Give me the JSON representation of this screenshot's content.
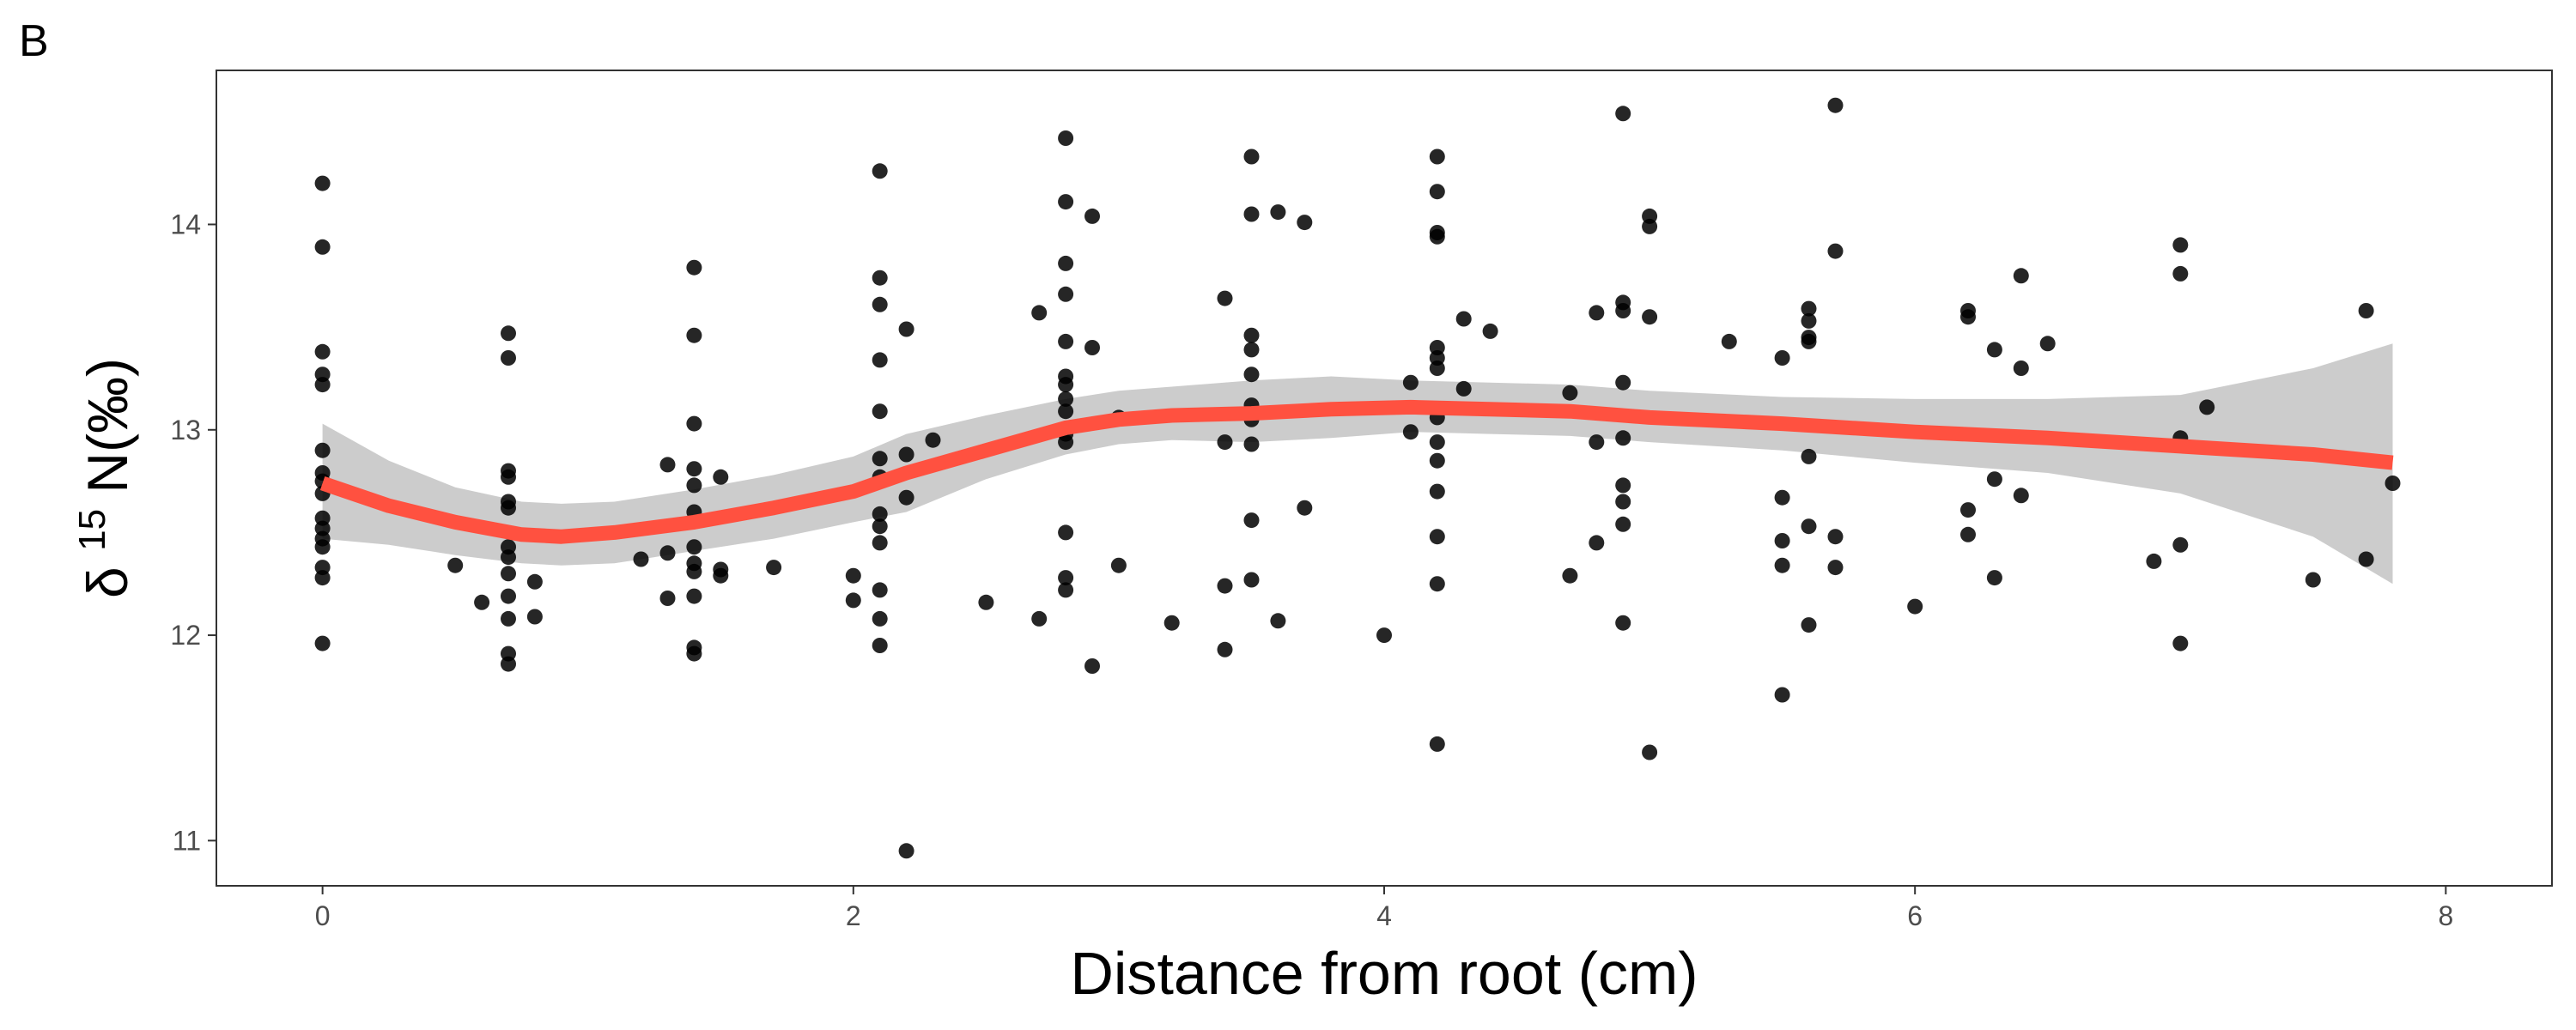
{
  "panel_label": "B",
  "chart_data": {
    "type": "scatter",
    "xlabel": "Distance from root (cm)",
    "ylabel": {
      "prefix": "δ",
      "superscript": "15",
      "suffix": "N(‰)"
    },
    "xlim": [
      -0.4,
      8.4
    ],
    "ylim": [
      10.78,
      14.75
    ],
    "x_ticks": [
      0,
      2,
      4,
      6,
      8
    ],
    "y_ticks": [
      11,
      12,
      13,
      14
    ],
    "grid": false,
    "legend": "none",
    "colors": {
      "points": "#000000",
      "smooth_line": "#ff5140",
      "confidence_band": "#cccccc",
      "panel_border": "#333333",
      "tick_text": "#4d4d4d"
    },
    "points": [
      [
        0,
        14.2
      ],
      [
        0,
        13.89
      ],
      [
        0,
        13.38
      ],
      [
        0,
        13.27
      ],
      [
        0,
        13.22
      ],
      [
        0,
        12.9
      ],
      [
        0,
        12.79
      ],
      [
        0,
        12.75
      ],
      [
        0,
        12.69
      ],
      [
        0,
        12.57
      ],
      [
        0,
        12.52
      ],
      [
        0,
        12.47
      ],
      [
        0,
        12.43
      ],
      [
        0,
        12.33
      ],
      [
        0,
        12.28
      ],
      [
        0,
        11.96
      ],
      [
        0.5,
        12.34
      ],
      [
        0.6,
        12.16
      ],
      [
        0.7,
        13.47
      ],
      [
        0.7,
        13.35
      ],
      [
        0.7,
        12.8
      ],
      [
        0.7,
        12.77
      ],
      [
        0.7,
        12.65
      ],
      [
        0.7,
        12.62
      ],
      [
        0.7,
        12.43
      ],
      [
        0.7,
        12.38
      ],
      [
        0.7,
        12.3
      ],
      [
        0.7,
        12.19
      ],
      [
        0.7,
        12.08
      ],
      [
        0.7,
        11.91
      ],
      [
        0.7,
        11.86
      ],
      [
        0.8,
        12.26
      ],
      [
        0.8,
        12.09
      ],
      [
        1.2,
        12.37
      ],
      [
        1.3,
        12.83
      ],
      [
        1.3,
        12.4
      ],
      [
        1.3,
        12.18
      ],
      [
        1.4,
        13.79
      ],
      [
        1.4,
        13.46
      ],
      [
        1.4,
        13.03
      ],
      [
        1.4,
        12.81
      ],
      [
        1.4,
        12.73
      ],
      [
        1.4,
        12.6
      ],
      [
        1.4,
        12.43
      ],
      [
        1.4,
        12.35
      ],
      [
        1.4,
        12.31
      ],
      [
        1.4,
        12.19
      ],
      [
        1.4,
        11.94
      ],
      [
        1.4,
        11.91
      ],
      [
        1.5,
        12.77
      ],
      [
        1.5,
        12.32
      ],
      [
        1.5,
        12.29
      ],
      [
        1.7,
        12.33
      ],
      [
        2.0,
        12.29
      ],
      [
        2.0,
        12.17
      ],
      [
        2.1,
        14.26
      ],
      [
        2.1,
        13.74
      ],
      [
        2.1,
        13.61
      ],
      [
        2.1,
        13.34
      ],
      [
        2.1,
        13.09
      ],
      [
        2.1,
        12.86
      ],
      [
        2.1,
        12.77
      ],
      [
        2.1,
        12.59
      ],
      [
        2.1,
        12.53
      ],
      [
        2.1,
        12.45
      ],
      [
        2.1,
        12.22
      ],
      [
        2.1,
        12.08
      ],
      [
        2.1,
        11.95
      ],
      [
        2.2,
        13.49
      ],
      [
        2.2,
        12.88
      ],
      [
        2.2,
        12.67
      ],
      [
        2.2,
        10.95
      ],
      [
        2.3,
        12.95
      ],
      [
        2.5,
        12.16
      ],
      [
        2.7,
        13.57
      ],
      [
        2.7,
        12.08
      ],
      [
        2.8,
        14.42
      ],
      [
        2.8,
        14.11
      ],
      [
        2.8,
        13.81
      ],
      [
        2.8,
        13.66
      ],
      [
        2.8,
        13.43
      ],
      [
        2.8,
        13.26
      ],
      [
        2.8,
        13.22
      ],
      [
        2.8,
        13.15
      ],
      [
        2.8,
        13.09
      ],
      [
        2.8,
        12.98
      ],
      [
        2.8,
        12.94
      ],
      [
        2.8,
        12.5
      ],
      [
        2.8,
        12.28
      ],
      [
        2.8,
        12.22
      ],
      [
        2.9,
        14.04
      ],
      [
        2.9,
        13.4
      ],
      [
        2.9,
        11.85
      ],
      [
        3.0,
        12.34
      ],
      [
        3.0,
        13.06
      ],
      [
        3.2,
        12.06
      ],
      [
        3.4,
        13.64
      ],
      [
        3.4,
        12.94
      ],
      [
        3.4,
        12.24
      ],
      [
        3.4,
        11.93
      ],
      [
        3.5,
        14.33
      ],
      [
        3.5,
        14.05
      ],
      [
        3.5,
        13.46
      ],
      [
        3.5,
        13.39
      ],
      [
        3.5,
        13.27
      ],
      [
        3.5,
        13.12
      ],
      [
        3.5,
        13.05
      ],
      [
        3.5,
        12.93
      ],
      [
        3.5,
        12.56
      ],
      [
        3.5,
        12.27
      ],
      [
        3.6,
        14.06
      ],
      [
        3.6,
        12.07
      ],
      [
        3.7,
        14.01
      ],
      [
        3.7,
        12.62
      ],
      [
        4.0,
        12.0
      ],
      [
        4.1,
        13.23
      ],
      [
        4.1,
        12.99
      ],
      [
        4.2,
        14.33
      ],
      [
        4.2,
        14.16
      ],
      [
        4.2,
        13.96
      ],
      [
        4.2,
        13.94
      ],
      [
        4.2,
        13.4
      ],
      [
        4.2,
        13.35
      ],
      [
        4.2,
        13.3
      ],
      [
        4.2,
        13.06
      ],
      [
        4.2,
        12.94
      ],
      [
        4.2,
        12.85
      ],
      [
        4.2,
        12.7
      ],
      [
        4.2,
        12.48
      ],
      [
        4.2,
        12.25
      ],
      [
        4.2,
        11.47
      ],
      [
        4.3,
        13.54
      ],
      [
        4.3,
        13.2
      ],
      [
        4.4,
        13.48
      ],
      [
        4.7,
        13.18
      ],
      [
        4.7,
        12.29
      ],
      [
        4.8,
        13.57
      ],
      [
        4.8,
        12.94
      ],
      [
        4.8,
        12.45
      ],
      [
        4.9,
        14.54
      ],
      [
        4.9,
        13.62
      ],
      [
        4.9,
        13.58
      ],
      [
        4.9,
        13.23
      ],
      [
        4.9,
        12.96
      ],
      [
        4.9,
        12.73
      ],
      [
        4.9,
        12.65
      ],
      [
        4.9,
        12.54
      ],
      [
        4.9,
        12.06
      ],
      [
        5.0,
        14.04
      ],
      [
        5.0,
        13.99
      ],
      [
        5.0,
        13.55
      ],
      [
        5.0,
        11.43
      ],
      [
        5.3,
        13.43
      ],
      [
        5.5,
        13.35
      ],
      [
        5.5,
        12.67
      ],
      [
        5.5,
        12.46
      ],
      [
        5.5,
        12.34
      ],
      [
        5.5,
        11.71
      ],
      [
        5.6,
        13.59
      ],
      [
        5.6,
        13.53
      ],
      [
        5.6,
        13.45
      ],
      [
        5.6,
        13.43
      ],
      [
        5.6,
        12.87
      ],
      [
        5.6,
        12.53
      ],
      [
        5.6,
        12.05
      ],
      [
        5.7,
        14.58
      ],
      [
        5.7,
        13.87
      ],
      [
        5.7,
        12.48
      ],
      [
        5.7,
        12.33
      ],
      [
        6.0,
        12.14
      ],
      [
        6.2,
        13.58
      ],
      [
        6.2,
        13.55
      ],
      [
        6.2,
        12.61
      ],
      [
        6.2,
        12.49
      ],
      [
        6.3,
        13.39
      ],
      [
        6.3,
        12.76
      ],
      [
        6.3,
        12.28
      ],
      [
        6.4,
        13.75
      ],
      [
        6.4,
        13.3
      ],
      [
        6.4,
        12.68
      ],
      [
        6.5,
        13.42
      ],
      [
        6.9,
        12.36
      ],
      [
        7.0,
        13.9
      ],
      [
        7.0,
        13.76
      ],
      [
        7.0,
        12.96
      ],
      [
        7.0,
        12.44
      ],
      [
        7.0,
        11.96
      ],
      [
        7.1,
        13.11
      ],
      [
        7.5,
        12.27
      ],
      [
        7.7,
        13.58
      ],
      [
        7.7,
        12.37
      ],
      [
        7.8,
        12.74
      ]
    ],
    "smooth": {
      "x": [
        0,
        0.25,
        0.5,
        0.75,
        0.9,
        1.1,
        1.4,
        1.7,
        2.0,
        2.2,
        2.5,
        2.8,
        3.0,
        3.2,
        3.5,
        3.8,
        4.1,
        4.4,
        4.7,
        5.0,
        5.5,
        6.0,
        6.5,
        7.0,
        7.5,
        7.8
      ],
      "y": [
        12.74,
        12.63,
        12.55,
        12.49,
        12.48,
        12.5,
        12.55,
        12.62,
        12.7,
        12.79,
        12.9,
        13.01,
        13.05,
        13.07,
        13.08,
        13.1,
        13.11,
        13.1,
        13.09,
        13.06,
        13.03,
        12.99,
        12.96,
        12.92,
        12.88,
        12.84
      ],
      "lower": [
        12.47,
        12.44,
        12.39,
        12.35,
        12.34,
        12.35,
        12.41,
        12.47,
        12.55,
        12.6,
        12.76,
        12.88,
        12.93,
        12.95,
        12.94,
        12.96,
        12.99,
        12.98,
        12.97,
        12.94,
        12.9,
        12.84,
        12.79,
        12.69,
        12.48,
        12.25
      ],
      "upper": [
        13.03,
        12.85,
        12.72,
        12.65,
        12.64,
        12.65,
        12.71,
        12.78,
        12.87,
        12.98,
        13.07,
        13.15,
        13.19,
        13.21,
        13.24,
        13.26,
        13.24,
        13.23,
        13.22,
        13.19,
        13.16,
        13.15,
        13.15,
        13.17,
        13.3,
        13.42
      ]
    }
  }
}
